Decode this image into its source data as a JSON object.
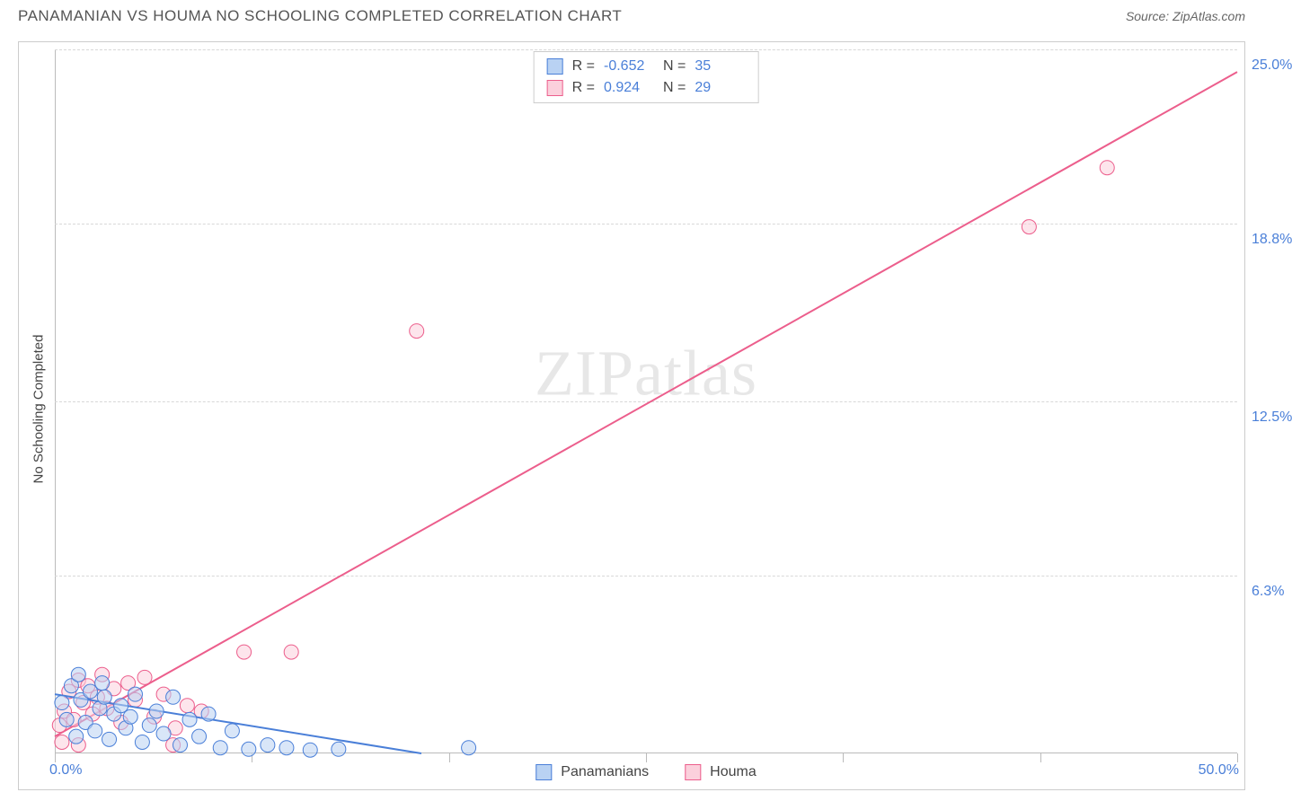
{
  "title": "PANAMANIAN VS HOUMA NO SCHOOLING COMPLETED CORRELATION CHART",
  "source": "Source: ZipAtlas.com",
  "ylabel": "No Schooling Completed",
  "watermark_strong": "ZIP",
  "watermark_light": "atlas",
  "colors": {
    "series_a_fill": "#b9d2f3",
    "series_a_stroke": "#4a7fd8",
    "series_b_fill": "#fbd0dc",
    "series_b_stroke": "#ec5e8c",
    "axis_label": "#4a7fd8",
    "grid": "#d8d8d8",
    "border": "#cccccc"
  },
  "chart": {
    "type": "scatter",
    "xlim": [
      0,
      50
    ],
    "ylim": [
      0,
      25
    ],
    "xticks": [
      0,
      8.33,
      16.67,
      25,
      33.33,
      41.67,
      50
    ],
    "yticks": [
      6.3,
      12.5,
      18.8,
      25.0
    ],
    "ytick_labels": [
      "6.3%",
      "12.5%",
      "18.8%",
      "25.0%"
    ],
    "x_origin_label": "0.0%",
    "x_end_label": "50.0%",
    "marker_radius": 8,
    "marker_opacity": 0.55,
    "line_width": 2
  },
  "stats": [
    {
      "swatch": "a",
      "r_label": "R =",
      "r": "-0.652",
      "n_label": "N =",
      "n": "35"
    },
    {
      "swatch": "b",
      "r_label": "R =",
      "r": "0.924",
      "n_label": "N =",
      "n": "29"
    }
  ],
  "legend": [
    {
      "swatch": "a",
      "label": "Panamanians"
    },
    {
      "swatch": "b",
      "label": "Houma"
    }
  ],
  "series_a": {
    "trend": {
      "x1": 0,
      "y1": 2.1,
      "x2": 15.5,
      "y2": 0
    },
    "points": [
      [
        0.3,
        1.8
      ],
      [
        0.5,
        1.2
      ],
      [
        0.7,
        2.4
      ],
      [
        0.9,
        0.6
      ],
      [
        1.1,
        1.9
      ],
      [
        1.3,
        1.1
      ],
      [
        1.5,
        2.2
      ],
      [
        1.7,
        0.8
      ],
      [
        1.9,
        1.6
      ],
      [
        2.1,
        2.0
      ],
      [
        2.3,
        0.5
      ],
      [
        2.5,
        1.4
      ],
      [
        2.8,
        1.7
      ],
      [
        3.0,
        0.9
      ],
      [
        3.2,
        1.3
      ],
      [
        3.4,
        2.1
      ],
      [
        3.7,
        0.4
      ],
      [
        4.0,
        1.0
      ],
      [
        4.3,
        1.5
      ],
      [
        4.6,
        0.7
      ],
      [
        5.0,
        2.0
      ],
      [
        5.3,
        0.3
      ],
      [
        5.7,
        1.2
      ],
      [
        6.1,
        0.6
      ],
      [
        6.5,
        1.4
      ],
      [
        7.0,
        0.2
      ],
      [
        7.5,
        0.8
      ],
      [
        8.2,
        0.15
      ],
      [
        9.0,
        0.3
      ],
      [
        9.8,
        0.2
      ],
      [
        10.8,
        0.12
      ],
      [
        12.0,
        0.15
      ],
      [
        17.5,
        0.2
      ],
      [
        2.0,
        2.5
      ],
      [
        1.0,
        2.8
      ]
    ]
  },
  "series_b": {
    "trend": {
      "x1": 0,
      "y1": 0.6,
      "x2": 50,
      "y2": 24.2
    },
    "points": [
      [
        0.2,
        1.0
      ],
      [
        0.4,
        1.5
      ],
      [
        0.6,
        2.2
      ],
      [
        0.8,
        1.2
      ],
      [
        1.0,
        2.6
      ],
      [
        1.2,
        1.8
      ],
      [
        1.4,
        2.4
      ],
      [
        1.6,
        1.4
      ],
      [
        1.8,
        2.0
      ],
      [
        2.0,
        2.8
      ],
      [
        2.2,
        1.6
      ],
      [
        2.5,
        2.3
      ],
      [
        2.8,
        1.1
      ],
      [
        3.1,
        2.5
      ],
      [
        3.4,
        1.9
      ],
      [
        3.8,
        2.7
      ],
      [
        4.2,
        1.3
      ],
      [
        4.6,
        2.1
      ],
      [
        5.1,
        0.9
      ],
      [
        5.6,
        1.7
      ],
      [
        6.2,
        1.5
      ],
      [
        0.3,
        0.4
      ],
      [
        1.0,
        0.3
      ],
      [
        5.0,
        0.3
      ],
      [
        8.0,
        3.6
      ],
      [
        10.0,
        3.6
      ],
      [
        15.3,
        15.0
      ],
      [
        41.2,
        18.7
      ],
      [
        44.5,
        20.8
      ]
    ]
  }
}
